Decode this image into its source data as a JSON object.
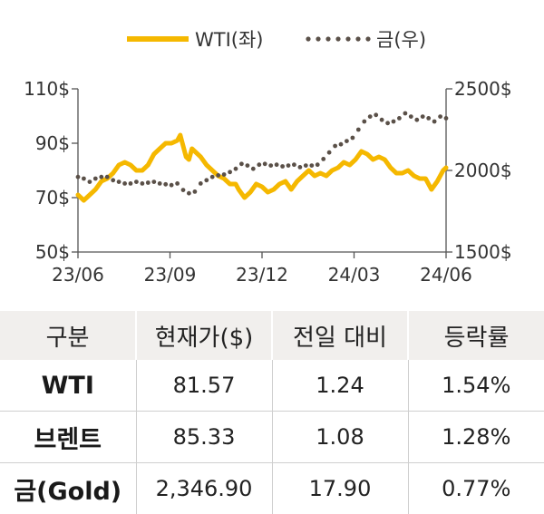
{
  "chart_data": {
    "type": "line",
    "legend": {
      "placement": "top",
      "items": [
        "WTI(좌)",
        "금(우)"
      ]
    },
    "x_ticks": [
      "23/06",
      "23/09",
      "23/12",
      "24/03",
      "24/06"
    ],
    "y_left_ticks": [
      "110$",
      "90$",
      "70$",
      "50$"
    ],
    "y_right_ticks": [
      "2500$",
      "2000$",
      "1500$"
    ],
    "y_left_range": [
      50,
      110
    ],
    "y_right_range": [
      1500,
      2500
    ],
    "series": [
      {
        "name": "WTI(좌)",
        "axis": "left",
        "style": "solid",
        "color": "#f5b800",
        "points": [
          [
            0,
            71
          ],
          [
            4,
            69
          ],
          [
            8,
            71
          ],
          [
            12,
            73
          ],
          [
            16,
            76
          ],
          [
            20,
            77
          ],
          [
            24,
            79
          ],
          [
            28,
            82
          ],
          [
            32,
            83
          ],
          [
            36,
            82
          ],
          [
            40,
            80
          ],
          [
            44,
            80
          ],
          [
            48,
            82
          ],
          [
            52,
            86
          ],
          [
            56,
            88
          ],
          [
            60,
            90
          ],
          [
            64,
            90
          ],
          [
            68,
            91
          ],
          [
            70,
            93
          ],
          [
            72,
            89
          ],
          [
            74,
            85
          ],
          [
            76,
            84
          ],
          [
            78,
            88
          ],
          [
            80,
            87
          ],
          [
            84,
            85
          ],
          [
            88,
            82
          ],
          [
            92,
            80
          ],
          [
            96,
            78
          ],
          [
            100,
            77
          ],
          [
            104,
            75
          ],
          [
            108,
            75
          ],
          [
            110,
            73
          ],
          [
            114,
            70
          ],
          [
            118,
            72
          ],
          [
            122,
            75
          ],
          [
            126,
            74
          ],
          [
            130,
            72
          ],
          [
            134,
            73
          ],
          [
            138,
            75
          ],
          [
            142,
            76
          ],
          [
            146,
            73
          ],
          [
            150,
            76
          ],
          [
            154,
            78
          ],
          [
            158,
            80
          ],
          [
            162,
            78
          ],
          [
            166,
            79
          ],
          [
            170,
            78
          ],
          [
            174,
            80
          ],
          [
            178,
            81
          ],
          [
            182,
            83
          ],
          [
            186,
            82
          ],
          [
            190,
            84
          ],
          [
            194,
            87
          ],
          [
            198,
            86
          ],
          [
            202,
            84
          ],
          [
            206,
            85
          ],
          [
            210,
            84
          ],
          [
            214,
            81
          ],
          [
            218,
            79
          ],
          [
            222,
            79
          ],
          [
            226,
            80
          ],
          [
            230,
            78
          ],
          [
            234,
            77
          ],
          [
            238,
            77
          ],
          [
            242,
            73
          ],
          [
            246,
            76
          ],
          [
            250,
            80
          ],
          [
            252,
            81
          ]
        ]
      },
      {
        "name": "금(우)",
        "axis": "right",
        "style": "dotted",
        "color": "#5a5048",
        "points": [
          [
            0,
            1960
          ],
          [
            4,
            1950
          ],
          [
            8,
            1930
          ],
          [
            12,
            1950
          ],
          [
            16,
            1960
          ],
          [
            20,
            1960
          ],
          [
            24,
            1940
          ],
          [
            28,
            1930
          ],
          [
            32,
            1920
          ],
          [
            36,
            1920
          ],
          [
            40,
            1930
          ],
          [
            44,
            1920
          ],
          [
            48,
            1925
          ],
          [
            52,
            1930
          ],
          [
            56,
            1920
          ],
          [
            60,
            1915
          ],
          [
            64,
            1910
          ],
          [
            68,
            1920
          ],
          [
            72,
            1880
          ],
          [
            76,
            1860
          ],
          [
            80,
            1870
          ],
          [
            84,
            1920
          ],
          [
            88,
            1940
          ],
          [
            92,
            1960
          ],
          [
            96,
            1970
          ],
          [
            100,
            1975
          ],
          [
            104,
            1990
          ],
          [
            108,
            2010
          ],
          [
            112,
            2040
          ],
          [
            116,
            2030
          ],
          [
            120,
            2010
          ],
          [
            124,
            2035
          ],
          [
            128,
            2040
          ],
          [
            132,
            2030
          ],
          [
            136,
            2035
          ],
          [
            140,
            2025
          ],
          [
            144,
            2030
          ],
          [
            148,
            2035
          ],
          [
            152,
            2020
          ],
          [
            156,
            2030
          ],
          [
            160,
            2030
          ],
          [
            164,
            2035
          ],
          [
            168,
            2070
          ],
          [
            172,
            2110
          ],
          [
            176,
            2150
          ],
          [
            180,
            2160
          ],
          [
            184,
            2180
          ],
          [
            188,
            2200
          ],
          [
            192,
            2250
          ],
          [
            196,
            2300
          ],
          [
            200,
            2330
          ],
          [
            204,
            2340
          ],
          [
            208,
            2310
          ],
          [
            212,
            2290
          ],
          [
            216,
            2300
          ],
          [
            220,
            2320
          ],
          [
            224,
            2350
          ],
          [
            228,
            2330
          ],
          [
            232,
            2310
          ],
          [
            236,
            2330
          ],
          [
            240,
            2320
          ],
          [
            244,
            2300
          ],
          [
            248,
            2330
          ],
          [
            252,
            2320
          ]
        ]
      }
    ]
  },
  "table": {
    "headers": [
      "구분",
      "현재가($)",
      "전일 대비",
      "등락률"
    ],
    "rows": [
      [
        "WTI",
        "81.57",
        "1.24",
        "1.54%"
      ],
      [
        "브렌트",
        "85.33",
        "1.08",
        "1.28%"
      ],
      [
        "금(Gold)",
        "2,346.90",
        "17.90",
        "0.77%"
      ]
    ]
  }
}
